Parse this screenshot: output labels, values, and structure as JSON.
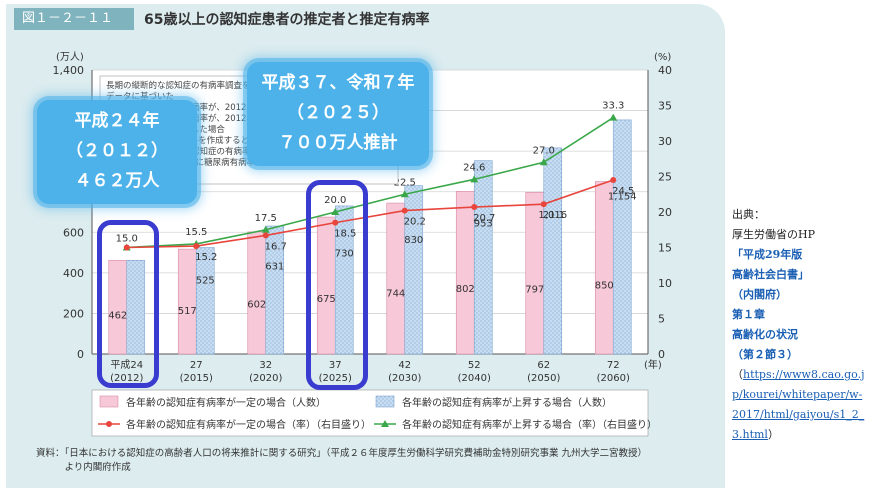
{
  "figure": {
    "number": "図１－２－１１",
    "title": "65歳以上の認知症患者の推定者と推定有病率"
  },
  "chart_data": {
    "type": "bar",
    "y_left_unit": "(万人)",
    "y_right_unit": "(%)",
    "x_unit": "(年)",
    "ylim_left": [
      0,
      1400
    ],
    "ylim_right": [
      0,
      40
    ],
    "y_left_ticks": [
      "0",
      "200",
      "400",
      "600",
      "800",
      "1,000",
      "1,200",
      "1,400"
    ],
    "y_right_ticks": [
      "0",
      "5",
      "10",
      "15",
      "20",
      "25",
      "30",
      "35",
      "40"
    ],
    "categories": [
      {
        "era": "平成24",
        "year": "(2012)"
      },
      {
        "era": "27",
        "year": "(2015)"
      },
      {
        "era": "32",
        "year": "(2020)"
      },
      {
        "era": "37",
        "year": "(2025)"
      },
      {
        "era": "42",
        "year": "(2030)"
      },
      {
        "era": "52",
        "year": "(2040)"
      },
      {
        "era": "62",
        "year": "(2050)"
      },
      {
        "era": "72",
        "year": "(2060)"
      }
    ],
    "series": [
      {
        "name": "各年齢の認知症有病率が一定の場合（人数）",
        "kind": "bar",
        "color": "#f6c8d8",
        "values": [
          462,
          517,
          602,
          675,
          744,
          802,
          797,
          850
        ]
      },
      {
        "name": "各年齢の認知症有病率が上昇する場合（人数）",
        "kind": "bar",
        "color": "#c8ddf2",
        "values": [
          462,
          525,
          631,
          730,
          830,
          953,
          1016,
          1154
        ],
        "labels": [
          "",
          "525",
          "631",
          "730",
          "830",
          "953",
          "1,016",
          "1,154"
        ]
      },
      {
        "name": "各年齢の認知症有病率が一定の場合（率）（右目盛り）",
        "kind": "line",
        "color": "#e8453c",
        "values": [
          15.0,
          15.2,
          16.7,
          18.5,
          20.2,
          20.7,
          21.1,
          24.5
        ]
      },
      {
        "name": "各年齢の認知症有病率が上昇する場合（率）（右目盛り）",
        "kind": "line",
        "color": "#3aa84a",
        "values": [
          15.0,
          15.5,
          17.5,
          20.0,
          22.5,
          24.6,
          27.0,
          33.3
        ]
      }
    ],
    "annotation_lines": [
      "長期の縦断的な認知症の有病率調査を行っている福岡県久山町研究",
      "データに基づいた",
      "・各年齢層の認知症有病率が、2012年以降一定と仮定した場合",
      "・各年齢層の認知症有病率が、2012年以降も糖尿病有病率の増加に",
      "　より上昇すると仮定した場合",
      "※久山町研究からモデルを作成すると、年齢、性別、生活習慣病",
      "（糖尿病）の有病率が認知症の有病率に影響することがわかった。",
      "本推計では2060年までに糖尿病有病率が20％増加すると仮定し",
      "た。"
    ]
  },
  "callouts": {
    "c2012": {
      "line1": "平成２４年",
      "line2": "（２０１２）",
      "line3": "４６２万人"
    },
    "c2025": {
      "line1": "平成３７、令和７年",
      "line2": "（２０２５）",
      "line3": "７００万人推計"
    }
  },
  "source": {
    "line1": "資料：「日本における認知症の高齢者人口の将来推計に関する研究」（平成２６年度厚生労働科学研究費補助金特別研究事業 九州大学二宮教授）",
    "line2": "　　　より内閣府作成"
  },
  "side": {
    "l1": "出典：",
    "l2": "厚生労働省のHP",
    "l3": "「平成29年版",
    "l4": "高齢社会白書」",
    "l5": "（内閣府）",
    "l6": "第１章",
    "l7": "高齢化の状況",
    "l8": "（第２節３）",
    "url_open": "（",
    "url": "https://www8.cao.go.jp/kourei/whitepaper/w-2017/html/gaiyou/s1_2_3.html",
    "url_close": "）"
  }
}
